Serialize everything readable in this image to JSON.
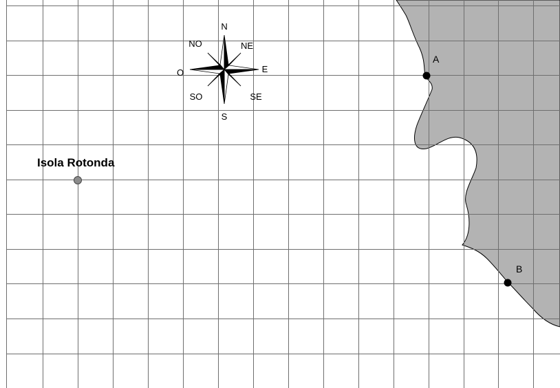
{
  "map": {
    "compass": {
      "north": "N",
      "north_east": "NE",
      "east": "E",
      "south_east": "SE",
      "south": "S",
      "south_west": "SO",
      "west": "O",
      "north_west": "NO"
    },
    "island": {
      "label": "Isola Rotonda"
    },
    "points": [
      {
        "label": "A"
      },
      {
        "label": "B"
      }
    ],
    "colors": {
      "land": "#b3b3b3",
      "grid": "#6e6e6e",
      "island_marker": "#8c8c8c",
      "point_marker": "#000000"
    }
  }
}
